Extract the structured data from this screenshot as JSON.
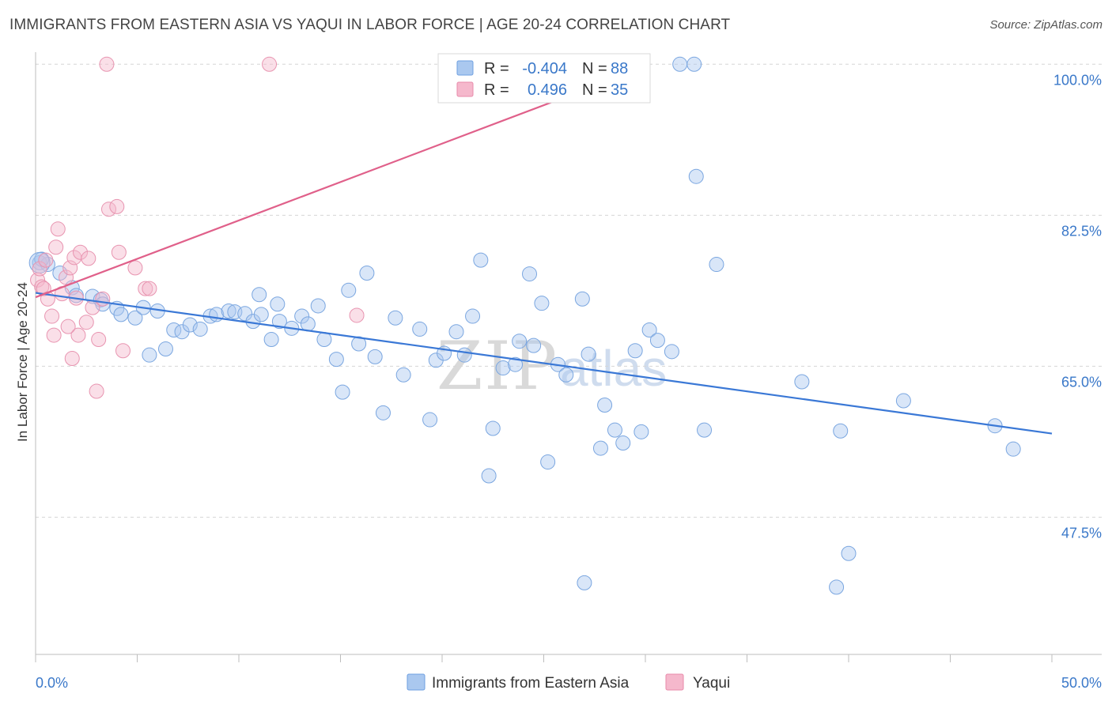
{
  "title": "IMMIGRANTS FROM EASTERN ASIA VS YAQUI IN LABOR FORCE | AGE 20-24 CORRELATION CHART",
  "source": "Source: ZipAtlas.com",
  "watermark": {
    "zip": "ZIP",
    "atlas": "atlas"
  },
  "colors": {
    "blue": "#3a78d6",
    "blue_fill": "#aac8ef",
    "pink": "#e0608a",
    "pink_fill": "#f5b8cc",
    "grid": "#d6d6d6",
    "tick_text": "#3a78c9"
  },
  "chart_data": {
    "type": "scatter",
    "title": "IMMIGRANTS FROM EASTERN ASIA VS YAQUI IN LABOR FORCE | AGE 20-24 CORRELATION CHART",
    "xlabel": "",
    "ylabel": "In Labor Force | Age 20-24",
    "xlim": [
      0,
      50
    ],
    "ylim": [
      31.6,
      101.4
    ],
    "x_tick_labels": [
      "0.0%",
      "50.0%"
    ],
    "y_ticks": [
      47.5,
      65.0,
      82.5,
      100.0
    ],
    "y_tick_labels": [
      "47.5%",
      "65.0%",
      "82.5%",
      "100.0%"
    ],
    "grid": "horizontal dashed",
    "legend_position": "top-center",
    "series": [
      {
        "name": "Immigrants from Eastern Asia",
        "color": "#3a78d6",
        "r": "-0.404",
        "n": "88",
        "trend": [
          [
            0,
            73.5
          ],
          [
            50,
            57.2
          ]
        ],
        "points": [
          [
            0.2,
            77.0
          ],
          [
            0.6,
            76.8
          ],
          [
            1.2,
            75.8
          ],
          [
            1.8,
            74.1
          ],
          [
            2.0,
            73.2
          ],
          [
            2.8,
            73.1
          ],
          [
            3.2,
            72.7
          ],
          [
            3.3,
            72.2
          ],
          [
            4.0,
            71.7
          ],
          [
            4.2,
            71.0
          ],
          [
            4.9,
            70.6
          ],
          [
            5.3,
            71.8
          ],
          [
            5.6,
            66.3
          ],
          [
            6.0,
            71.4
          ],
          [
            6.4,
            67.0
          ],
          [
            6.8,
            69.2
          ],
          [
            7.2,
            69.0
          ],
          [
            7.6,
            69.8
          ],
          [
            8.1,
            69.3
          ],
          [
            8.6,
            70.8
          ],
          [
            8.9,
            71.0
          ],
          [
            9.5,
            71.4
          ],
          [
            9.8,
            71.3
          ],
          [
            10.3,
            71.1
          ],
          [
            10.7,
            70.2
          ],
          [
            11.0,
            73.3
          ],
          [
            11.1,
            71.0
          ],
          [
            11.6,
            68.1
          ],
          [
            11.9,
            72.2
          ],
          [
            12.0,
            70.2
          ],
          [
            12.6,
            69.4
          ],
          [
            13.1,
            70.8
          ],
          [
            13.4,
            69.9
          ],
          [
            13.9,
            72.0
          ],
          [
            14.2,
            68.1
          ],
          [
            14.8,
            65.8
          ],
          [
            15.1,
            62.0
          ],
          [
            15.4,
            73.8
          ],
          [
            15.9,
            67.6
          ],
          [
            16.3,
            75.8
          ],
          [
            16.7,
            66.1
          ],
          [
            17.1,
            59.6
          ],
          [
            17.7,
            70.6
          ],
          [
            18.1,
            64.0
          ],
          [
            18.9,
            69.3
          ],
          [
            19.4,
            58.8
          ],
          [
            19.7,
            65.7
          ],
          [
            20.1,
            66.5
          ],
          [
            20.7,
            69.0
          ],
          [
            21.1,
            66.3
          ],
          [
            21.5,
            70.8
          ],
          [
            21.9,
            77.3
          ],
          [
            22.3,
            52.3
          ],
          [
            22.5,
            57.8
          ],
          [
            23.0,
            64.8
          ],
          [
            23.6,
            65.2
          ],
          [
            23.8,
            67.9
          ],
          [
            24.3,
            75.7
          ],
          [
            24.5,
            67.4
          ],
          [
            24.9,
            72.3
          ],
          [
            25.2,
            53.9
          ],
          [
            25.7,
            65.2
          ],
          [
            26.1,
            64.0
          ],
          [
            26.9,
            72.8
          ],
          [
            27.2,
            66.4
          ],
          [
            27.8,
            55.5
          ],
          [
            28.0,
            60.5
          ],
          [
            28.5,
            57.6
          ],
          [
            28.9,
            56.1
          ],
          [
            29.5,
            66.8
          ],
          [
            29.8,
            57.4
          ],
          [
            30.2,
            69.2
          ],
          [
            30.6,
            68.0
          ],
          [
            31.3,
            66.7
          ],
          [
            31.7,
            100.0
          ],
          [
            32.4,
            100.0
          ],
          [
            32.5,
            87.0
          ],
          [
            32.9,
            57.6
          ],
          [
            33.5,
            76.8
          ],
          [
            37.7,
            63.2
          ],
          [
            39.6,
            57.5
          ],
          [
            39.4,
            39.4
          ],
          [
            40.0,
            43.3
          ],
          [
            42.7,
            61.0
          ],
          [
            47.2,
            58.1
          ],
          [
            48.1,
            55.4
          ],
          [
            27.0,
            39.9
          ],
          [
            0.3,
            77.4
          ]
        ]
      },
      {
        "name": "Yaqui",
        "color": "#e0608a",
        "r": "0.496",
        "n": "35",
        "trend": [
          [
            0,
            73.0
          ],
          [
            30.0,
            99.7
          ]
        ],
        "points": [
          [
            0.1,
            75.0
          ],
          [
            0.2,
            76.3
          ],
          [
            0.3,
            74.2
          ],
          [
            0.4,
            74.0
          ],
          [
            0.5,
            77.3
          ],
          [
            0.6,
            72.8
          ],
          [
            0.8,
            70.8
          ],
          [
            0.9,
            68.6
          ],
          [
            1.0,
            78.8
          ],
          [
            1.1,
            80.9
          ],
          [
            1.3,
            73.4
          ],
          [
            1.5,
            75.3
          ],
          [
            1.7,
            76.4
          ],
          [
            1.8,
            65.9
          ],
          [
            1.9,
            77.6
          ],
          [
            2.0,
            72.9
          ],
          [
            2.1,
            68.6
          ],
          [
            2.2,
            78.2
          ],
          [
            2.5,
            70.1
          ],
          [
            2.6,
            77.5
          ],
          [
            2.8,
            71.8
          ],
          [
            3.0,
            62.1
          ],
          [
            3.1,
            68.1
          ],
          [
            3.3,
            72.8
          ],
          [
            3.5,
            100.0
          ],
          [
            3.6,
            83.2
          ],
          [
            4.0,
            83.5
          ],
          [
            4.1,
            78.2
          ],
          [
            4.3,
            66.8
          ],
          [
            4.9,
            76.4
          ],
          [
            5.4,
            74.0
          ],
          [
            5.6,
            74.0
          ],
          [
            11.5,
            100.0
          ],
          [
            15.8,
            70.9
          ],
          [
            1.6,
            69.6
          ]
        ]
      }
    ]
  },
  "legend": {
    "rows": [
      {
        "r_label": "R =",
        "r_value": "-0.404",
        "n_label": "N =",
        "n_value": "88"
      },
      {
        "r_label": "R =",
        "r_value": "0.496",
        "n_label": "N =",
        "n_value": "35"
      }
    ]
  },
  "bottom_legend": {
    "items": [
      {
        "label": "Immigrants from Eastern Asia"
      },
      {
        "label": "Yaqui"
      }
    ]
  }
}
